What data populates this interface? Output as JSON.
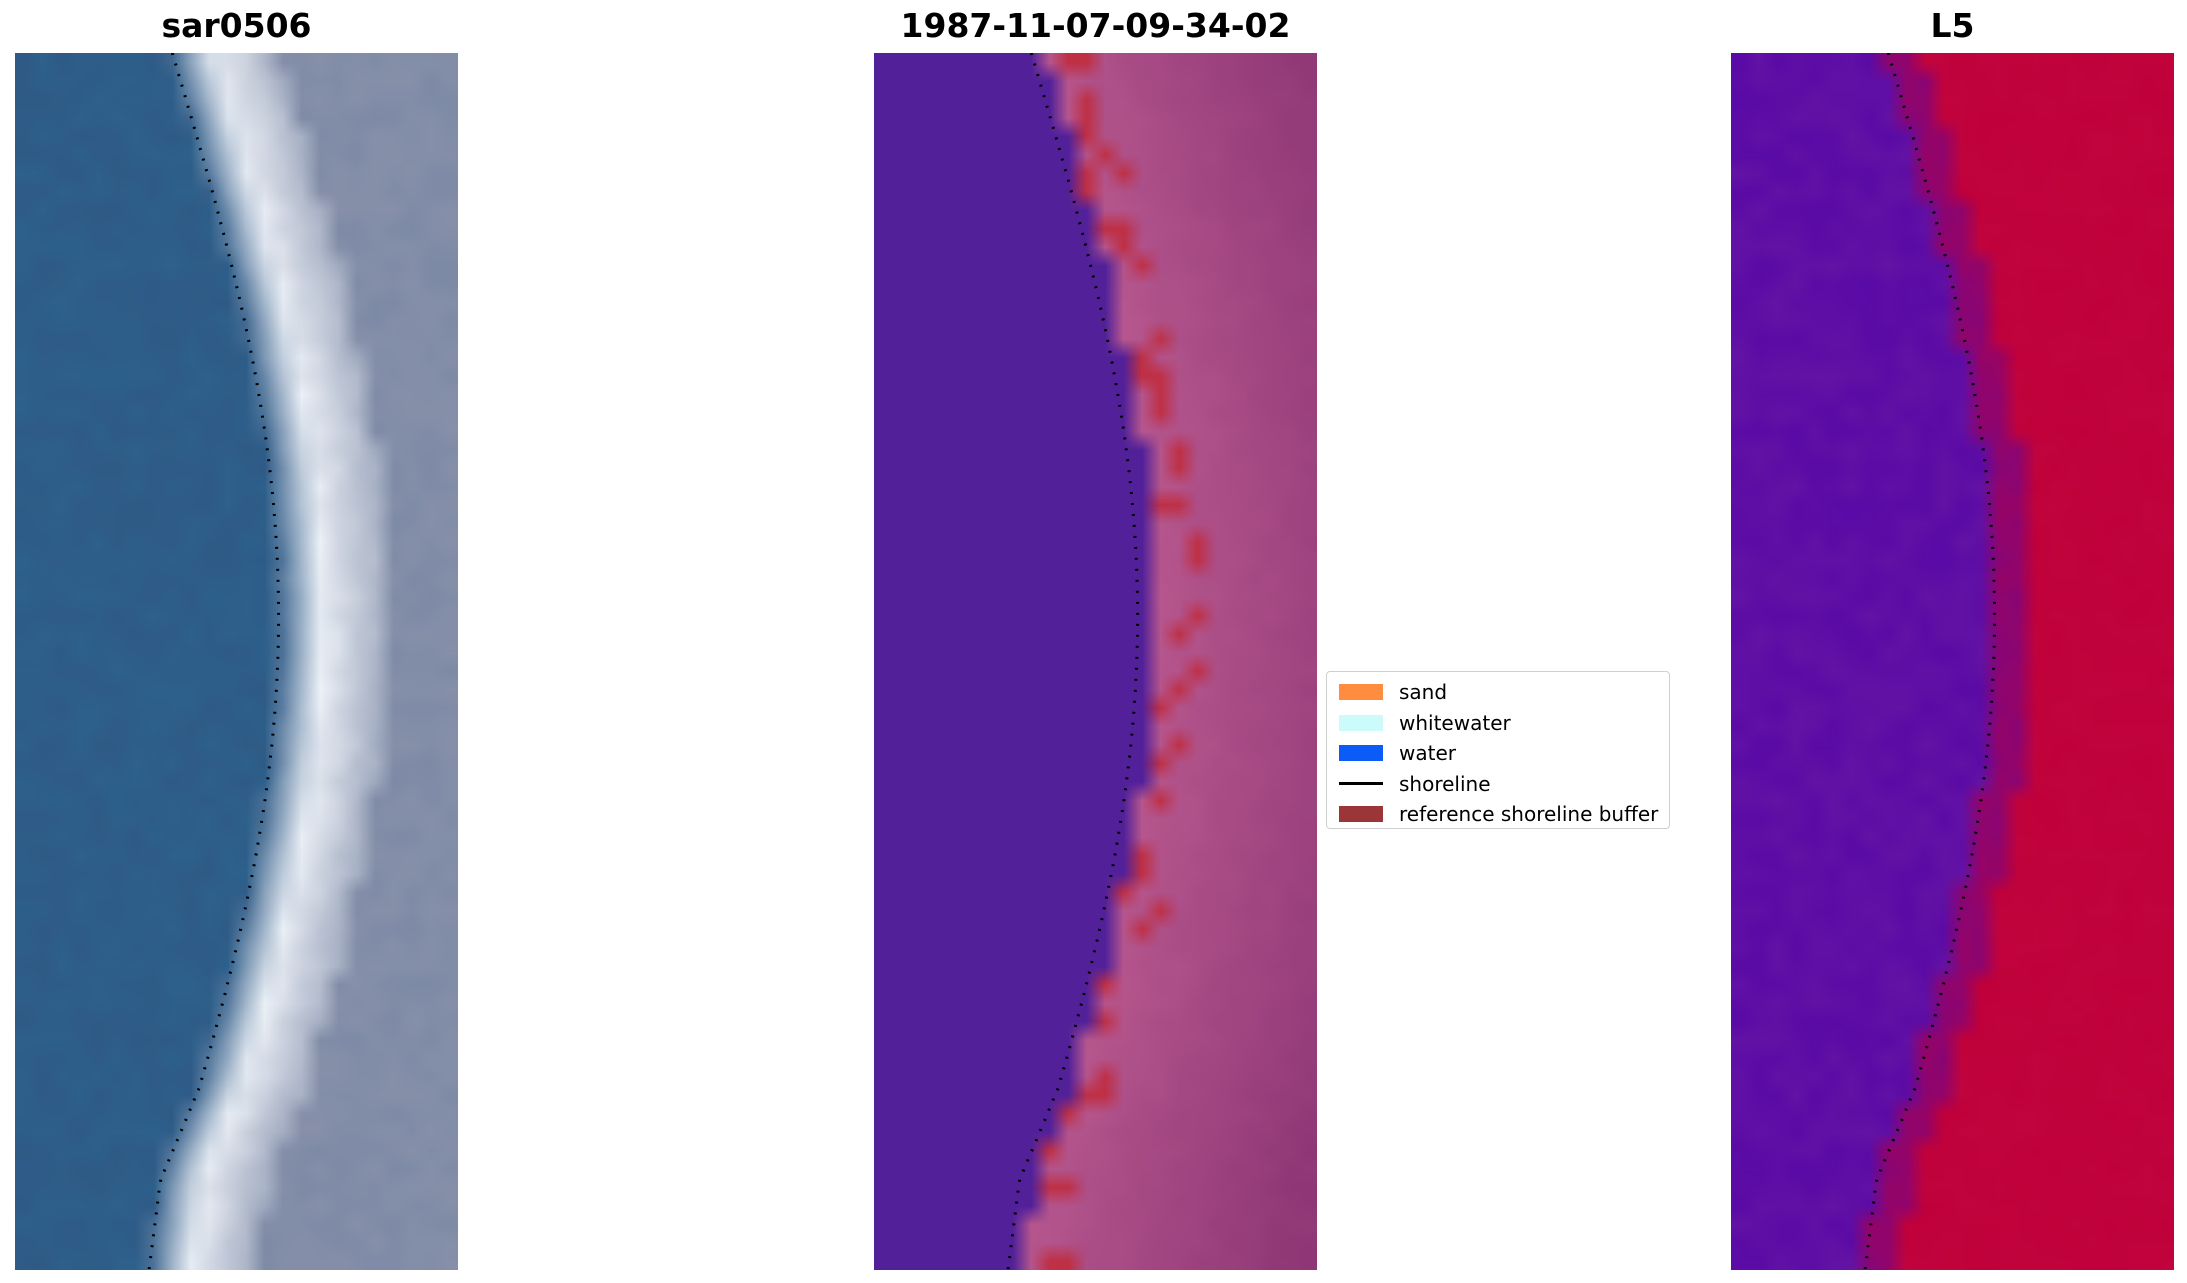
{
  "titles": {
    "left": "sar0506",
    "center": "1987-11-07-09-34-02",
    "right": "L5"
  },
  "legend": {
    "items": [
      {
        "label": "sand",
        "color": "#ff8c3f",
        "kind": "patch",
        "icon": "sand-swatch-icon"
      },
      {
        "label": "whitewater",
        "color": "#ccfbfb",
        "kind": "patch",
        "icon": "whitewater-swatch-icon"
      },
      {
        "label": "water",
        "color": "#0b5cf7",
        "kind": "patch",
        "icon": "water-swatch-icon"
      },
      {
        "label": "shoreline",
        "color": "#000000",
        "kind": "line",
        "icon": "shoreline-line-icon"
      },
      {
        "label": "reference shoreline buffer",
        "color": "#9b3538",
        "kind": "patch",
        "icon": "buffer-swatch-icon"
      }
    ]
  },
  "colors": {
    "rgb_water": "#2f5a86",
    "rgb_surf": "#eef2f8",
    "rgb_land": "#7d8aa6",
    "class_water": "#52219a",
    "class_land": "#b8588f",
    "class_land_dark": "#8a3373",
    "class_buffer": "#bf3045",
    "mndwi_low": "#5a0aa6",
    "mndwi_high": "#c0003a",
    "shoreline": "#000000"
  }
}
